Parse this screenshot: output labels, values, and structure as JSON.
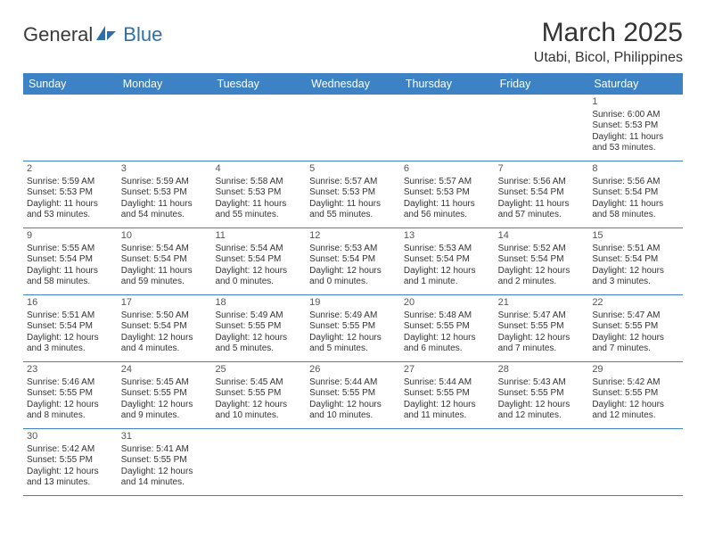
{
  "colors": {
    "header_bg": "#3d82c4",
    "header_text": "#ffffff",
    "row_border": "#3d82c4",
    "text": "#333333",
    "logo_gray": "#3a3a3a",
    "logo_blue": "#2f6fa8",
    "background": "#ffffff"
  },
  "logo": {
    "part1": "General",
    "part2": "Blue"
  },
  "title": "March 2025",
  "location": "Utabi, Bicol, Philippines",
  "weekdays": [
    "Sunday",
    "Monday",
    "Tuesday",
    "Wednesday",
    "Thursday",
    "Friday",
    "Saturday"
  ],
  "weeks": [
    [
      null,
      null,
      null,
      null,
      null,
      null,
      {
        "n": "1",
        "sr": "6:00 AM",
        "ss": "5:53 PM",
        "dl": "11 hours and 53 minutes."
      }
    ],
    [
      {
        "n": "2",
        "sr": "5:59 AM",
        "ss": "5:53 PM",
        "dl": "11 hours and 53 minutes."
      },
      {
        "n": "3",
        "sr": "5:59 AM",
        "ss": "5:53 PM",
        "dl": "11 hours and 54 minutes."
      },
      {
        "n": "4",
        "sr": "5:58 AM",
        "ss": "5:53 PM",
        "dl": "11 hours and 55 minutes."
      },
      {
        "n": "5",
        "sr": "5:57 AM",
        "ss": "5:53 PM",
        "dl": "11 hours and 55 minutes."
      },
      {
        "n": "6",
        "sr": "5:57 AM",
        "ss": "5:53 PM",
        "dl": "11 hours and 56 minutes."
      },
      {
        "n": "7",
        "sr": "5:56 AM",
        "ss": "5:54 PM",
        "dl": "11 hours and 57 minutes."
      },
      {
        "n": "8",
        "sr": "5:56 AM",
        "ss": "5:54 PM",
        "dl": "11 hours and 58 minutes."
      }
    ],
    [
      {
        "n": "9",
        "sr": "5:55 AM",
        "ss": "5:54 PM",
        "dl": "11 hours and 58 minutes."
      },
      {
        "n": "10",
        "sr": "5:54 AM",
        "ss": "5:54 PM",
        "dl": "11 hours and 59 minutes."
      },
      {
        "n": "11",
        "sr": "5:54 AM",
        "ss": "5:54 PM",
        "dl": "12 hours and 0 minutes."
      },
      {
        "n": "12",
        "sr": "5:53 AM",
        "ss": "5:54 PM",
        "dl": "12 hours and 0 minutes."
      },
      {
        "n": "13",
        "sr": "5:53 AM",
        "ss": "5:54 PM",
        "dl": "12 hours and 1 minute."
      },
      {
        "n": "14",
        "sr": "5:52 AM",
        "ss": "5:54 PM",
        "dl": "12 hours and 2 minutes."
      },
      {
        "n": "15",
        "sr": "5:51 AM",
        "ss": "5:54 PM",
        "dl": "12 hours and 3 minutes."
      }
    ],
    [
      {
        "n": "16",
        "sr": "5:51 AM",
        "ss": "5:54 PM",
        "dl": "12 hours and 3 minutes."
      },
      {
        "n": "17",
        "sr": "5:50 AM",
        "ss": "5:54 PM",
        "dl": "12 hours and 4 minutes."
      },
      {
        "n": "18",
        "sr": "5:49 AM",
        "ss": "5:55 PM",
        "dl": "12 hours and 5 minutes."
      },
      {
        "n": "19",
        "sr": "5:49 AM",
        "ss": "5:55 PM",
        "dl": "12 hours and 5 minutes."
      },
      {
        "n": "20",
        "sr": "5:48 AM",
        "ss": "5:55 PM",
        "dl": "12 hours and 6 minutes."
      },
      {
        "n": "21",
        "sr": "5:47 AM",
        "ss": "5:55 PM",
        "dl": "12 hours and 7 minutes."
      },
      {
        "n": "22",
        "sr": "5:47 AM",
        "ss": "5:55 PM",
        "dl": "12 hours and 7 minutes."
      }
    ],
    [
      {
        "n": "23",
        "sr": "5:46 AM",
        "ss": "5:55 PM",
        "dl": "12 hours and 8 minutes."
      },
      {
        "n": "24",
        "sr": "5:45 AM",
        "ss": "5:55 PM",
        "dl": "12 hours and 9 minutes."
      },
      {
        "n": "25",
        "sr": "5:45 AM",
        "ss": "5:55 PM",
        "dl": "12 hours and 10 minutes."
      },
      {
        "n": "26",
        "sr": "5:44 AM",
        "ss": "5:55 PM",
        "dl": "12 hours and 10 minutes."
      },
      {
        "n": "27",
        "sr": "5:44 AM",
        "ss": "5:55 PM",
        "dl": "12 hours and 11 minutes."
      },
      {
        "n": "28",
        "sr": "5:43 AM",
        "ss": "5:55 PM",
        "dl": "12 hours and 12 minutes."
      },
      {
        "n": "29",
        "sr": "5:42 AM",
        "ss": "5:55 PM",
        "dl": "12 hours and 12 minutes."
      }
    ],
    [
      {
        "n": "30",
        "sr": "5:42 AM",
        "ss": "5:55 PM",
        "dl": "12 hours and 13 minutes."
      },
      {
        "n": "31",
        "sr": "5:41 AM",
        "ss": "5:55 PM",
        "dl": "12 hours and 14 minutes."
      },
      null,
      null,
      null,
      null,
      null
    ]
  ],
  "labels": {
    "sunrise_prefix": "Sunrise: ",
    "sunset_prefix": "Sunset: ",
    "daylight_prefix": "Daylight: "
  }
}
